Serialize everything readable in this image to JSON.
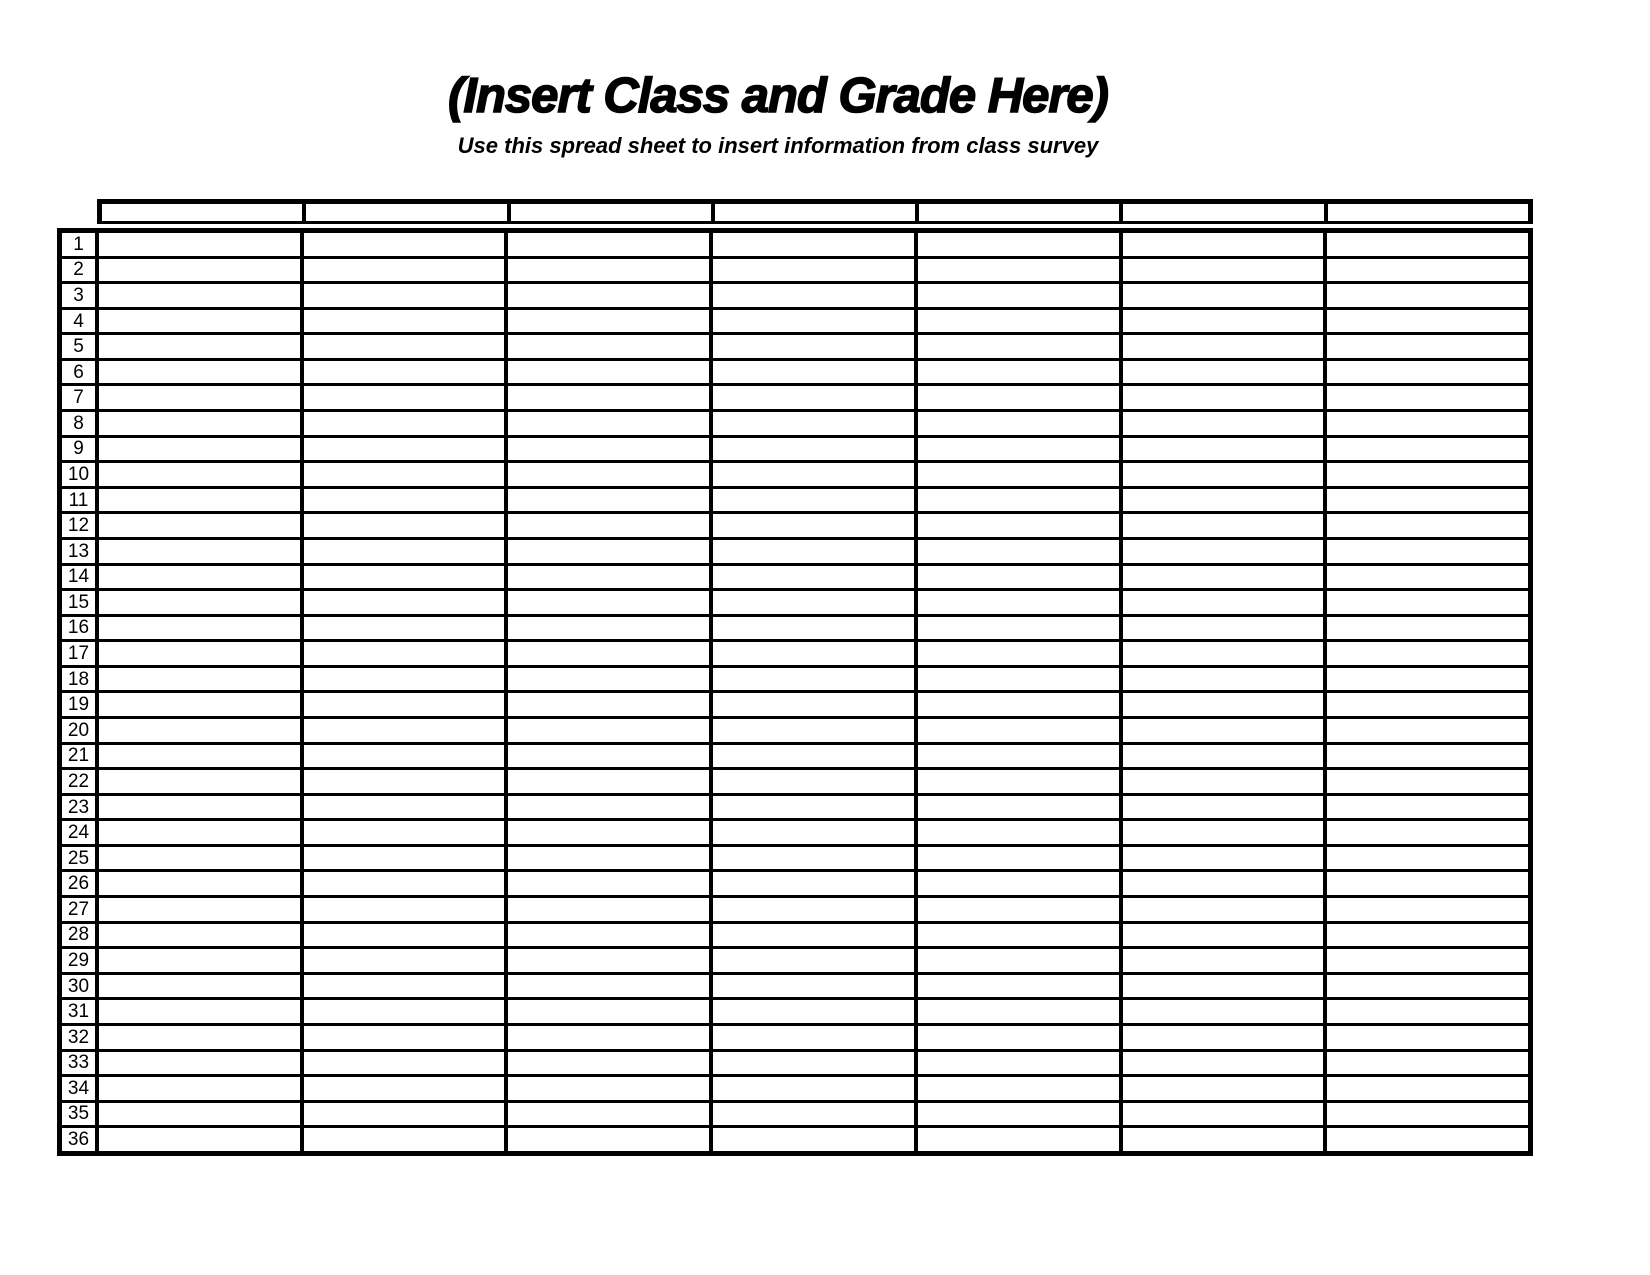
{
  "title": "(Insert Class and Grade Here)",
  "subtitle": "Use this spread sheet to insert information from class survey",
  "colors": {
    "ink": "#000000",
    "paper": "#ffffff"
  },
  "table": {
    "header_cells": [
      "",
      "",
      "",
      "",
      "",
      "",
      ""
    ],
    "row_numbers": [
      "1",
      "2",
      "3",
      "4",
      "5",
      "6",
      "7",
      "8",
      "9",
      "10",
      "11",
      "12",
      "13",
      "14",
      "15",
      "16",
      "17",
      "18",
      "19",
      "20",
      "21",
      "22",
      "23",
      "24",
      "25",
      "26",
      "27",
      "28",
      "29",
      "30",
      "31",
      "32",
      "33",
      "34",
      "35",
      "36"
    ],
    "cell_values": []
  }
}
